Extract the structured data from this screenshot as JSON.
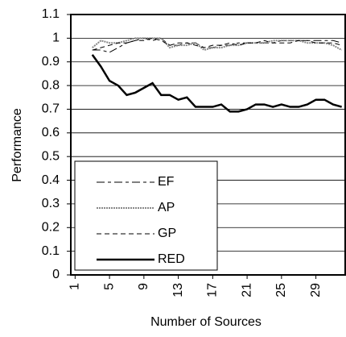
{
  "chart_data": {
    "type": "line",
    "x_label": "Number of Sources",
    "y_label": "Performance",
    "x": [
      3,
      4,
      5,
      6,
      7,
      8,
      9,
      10,
      11,
      12,
      13,
      14,
      15,
      16,
      17,
      18,
      19,
      20,
      21,
      22,
      23,
      24,
      25,
      26,
      27,
      28,
      29,
      30,
      31,
      32
    ],
    "xlim": [
      0.5,
      32.5
    ],
    "xticks": [
      1,
      5,
      9,
      13,
      17,
      21,
      25,
      29
    ],
    "ylim": [
      0,
      1.1
    ],
    "yticks": [
      0,
      0.1,
      0.2,
      0.3,
      0.4,
      0.5,
      0.6,
      0.7,
      0.8,
      0.9,
      1,
      1.1
    ],
    "grid": true,
    "legend": "lower left",
    "series": [
      {
        "name": "EF",
        "color": "#000000",
        "values": [
          0.95,
          0.95,
          0.94,
          0.96,
          0.98,
          0.99,
          1.0,
          0.99,
          1.0,
          0.97,
          0.97,
          0.98,
          0.98,
          0.96,
          0.96,
          0.97,
          0.97,
          0.98,
          0.98,
          0.98,
          0.98,
          0.98,
          0.99,
          0.99,
          0.99,
          0.99,
          0.99,
          0.99,
          0.99,
          0.98
        ]
      },
      {
        "name": "AP",
        "color": "#888888",
        "values": [
          0.96,
          0.99,
          0.98,
          0.98,
          0.99,
          1.0,
          1.0,
          1.0,
          1.0,
          0.96,
          0.97,
          0.97,
          0.98,
          0.95,
          0.96,
          0.96,
          0.97,
          0.97,
          0.98,
          0.98,
          0.98,
          0.99,
          0.99,
          0.99,
          0.99,
          0.98,
          0.98,
          0.98,
          0.97,
          0.95
        ]
      },
      {
        "name": "GP",
        "color": "#000000",
        "values": [
          0.95,
          0.96,
          0.97,
          0.98,
          0.98,
          0.99,
          0.99,
          1.0,
          0.99,
          0.97,
          0.98,
          0.98,
          0.97,
          0.96,
          0.97,
          0.97,
          0.98,
          0.97,
          0.98,
          0.98,
          0.99,
          0.98,
          0.98,
          0.98,
          0.99,
          0.99,
          0.98,
          0.98,
          0.98,
          0.97
        ]
      },
      {
        "name": "RED",
        "color": "#000000",
        "values": [
          0.93,
          0.88,
          0.82,
          0.8,
          0.76,
          0.77,
          0.79,
          0.81,
          0.76,
          0.76,
          0.74,
          0.75,
          0.71,
          0.71,
          0.71,
          0.72,
          0.69,
          0.69,
          0.7,
          0.72,
          0.72,
          0.71,
          0.72,
          0.71,
          0.71,
          0.72,
          0.74,
          0.74,
          0.72,
          0.71
        ]
      }
    ]
  }
}
